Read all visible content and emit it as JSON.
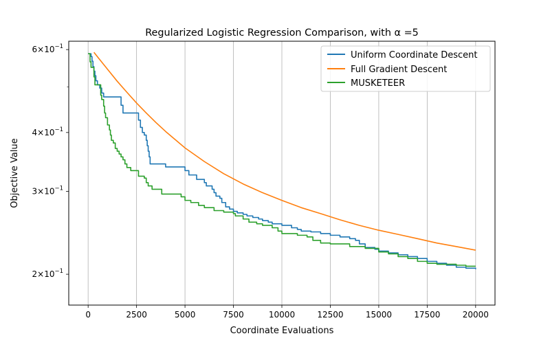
{
  "chart_data": {
    "type": "line",
    "title": "Regularized Logistic Regression Comparison, with α =5",
    "xlabel": "Coordinate Evaluations",
    "ylabel": "Objective Value",
    "xlim": [
      -1000,
      21000
    ],
    "ylim": [
      0.172,
      0.625
    ],
    "yscale": "log",
    "grid": "x-major-vertical",
    "legend_position": "top-right",
    "x_ticks": [
      0,
      2500,
      5000,
      7500,
      10000,
      12500,
      15000,
      17500,
      20000
    ],
    "x_tick_labels": [
      "0",
      "2500",
      "5000",
      "7500",
      "10000",
      "12500",
      "15000",
      "17500",
      "20000"
    ],
    "y_ticks": [
      0.6,
      0.4,
      0.3,
      0.2
    ],
    "y_tick_labels": [
      {
        "base": "6×10",
        "exp": "−1"
      },
      {
        "base": "4×10",
        "exp": "−1"
      },
      {
        "base": "3×10",
        "exp": "−1"
      },
      {
        "base": "2×10",
        "exp": "−1"
      }
    ],
    "y_minor_ticks": [
      0.5
    ],
    "series": [
      {
        "name": "Uniform Coordinate Descent",
        "color": "#1f77b4",
        "step": true,
        "points": [
          [
            0,
            0.588
          ],
          [
            80,
            0.588
          ],
          [
            150,
            0.58
          ],
          [
            200,
            0.567
          ],
          [
            250,
            0.552
          ],
          [
            300,
            0.54
          ],
          [
            350,
            0.528
          ],
          [
            400,
            0.515
          ],
          [
            480,
            0.505
          ],
          [
            600,
            0.497
          ],
          [
            700,
            0.485
          ],
          [
            800,
            0.476
          ],
          [
            900,
            0.476
          ],
          [
            1700,
            0.476
          ],
          [
            1700,
            0.457
          ],
          [
            1800,
            0.44
          ],
          [
            2600,
            0.44
          ],
          [
            2600,
            0.425
          ],
          [
            2700,
            0.41
          ],
          [
            2800,
            0.4
          ],
          [
            2900,
            0.395
          ],
          [
            3000,
            0.385
          ],
          [
            3050,
            0.375
          ],
          [
            3100,
            0.365
          ],
          [
            3150,
            0.355
          ],
          [
            3200,
            0.343
          ],
          [
            4000,
            0.343
          ],
          [
            4000,
            0.338
          ],
          [
            5000,
            0.338
          ],
          [
            5000,
            0.332
          ],
          [
            5200,
            0.325
          ],
          [
            5600,
            0.325
          ],
          [
            5600,
            0.318
          ],
          [
            6000,
            0.313
          ],
          [
            6100,
            0.308
          ],
          [
            6400,
            0.303
          ],
          [
            6500,
            0.298
          ],
          [
            6600,
            0.293
          ],
          [
            6800,
            0.29
          ],
          [
            6900,
            0.284
          ],
          [
            7100,
            0.278
          ],
          [
            7300,
            0.275
          ],
          [
            7500,
            0.272
          ],
          [
            7700,
            0.27
          ],
          [
            8000,
            0.268
          ],
          [
            8200,
            0.266
          ],
          [
            8500,
            0.264
          ],
          [
            8800,
            0.262
          ],
          [
            9000,
            0.26
          ],
          [
            9300,
            0.258
          ],
          [
            9500,
            0.256
          ],
          [
            10000,
            0.254
          ],
          [
            10500,
            0.251
          ],
          [
            10800,
            0.249
          ],
          [
            11000,
            0.247
          ],
          [
            11500,
            0.246
          ],
          [
            12000,
            0.244
          ],
          [
            12500,
            0.242
          ],
          [
            13000,
            0.24
          ],
          [
            13500,
            0.238
          ],
          [
            13800,
            0.236
          ],
          [
            14000,
            0.232
          ],
          [
            14300,
            0.228
          ],
          [
            14800,
            0.226
          ],
          [
            15000,
            0.224
          ],
          [
            15500,
            0.222
          ],
          [
            16000,
            0.22
          ],
          [
            16500,
            0.218
          ],
          [
            17000,
            0.216
          ],
          [
            17500,
            0.213
          ],
          [
            18000,
            0.211
          ],
          [
            18500,
            0.209
          ],
          [
            19000,
            0.207
          ],
          [
            19500,
            0.206
          ],
          [
            20000,
            0.205
          ]
        ]
      },
      {
        "name": "Full Gradient Descent",
        "color": "#ff7f0e",
        "step": false,
        "points": [
          [
            300,
            0.592
          ],
          [
            500,
            0.578
          ],
          [
            1000,
            0.545
          ],
          [
            1500,
            0.514
          ],
          [
            2000,
            0.487
          ],
          [
            2500,
            0.462
          ],
          [
            3000,
            0.44
          ],
          [
            3500,
            0.42
          ],
          [
            4000,
            0.402
          ],
          [
            5000,
            0.371
          ],
          [
            6000,
            0.347
          ],
          [
            7000,
            0.327
          ],
          [
            8000,
            0.311
          ],
          [
            9000,
            0.298
          ],
          [
            10000,
            0.287
          ],
          [
            11000,
            0.277
          ],
          [
            12000,
            0.269
          ],
          [
            13000,
            0.261
          ],
          [
            14000,
            0.254
          ],
          [
            15000,
            0.248
          ],
          [
            16000,
            0.243
          ],
          [
            17000,
            0.238
          ],
          [
            18000,
            0.233
          ],
          [
            19000,
            0.229
          ],
          [
            20000,
            0.225
          ]
        ]
      },
      {
        "name": "MUSKETEER",
        "color": "#2ca02c",
        "step": true,
        "points": [
          [
            0,
            0.588
          ],
          [
            100,
            0.588
          ],
          [
            100,
            0.565
          ],
          [
            150,
            0.565
          ],
          [
            150,
            0.55
          ],
          [
            300,
            0.55
          ],
          [
            300,
            0.525
          ],
          [
            350,
            0.525
          ],
          [
            350,
            0.505
          ],
          [
            650,
            0.505
          ],
          [
            650,
            0.48
          ],
          [
            700,
            0.47
          ],
          [
            800,
            0.455
          ],
          [
            850,
            0.44
          ],
          [
            900,
            0.43
          ],
          [
            1000,
            0.415
          ],
          [
            1100,
            0.405
          ],
          [
            1150,
            0.395
          ],
          [
            1200,
            0.385
          ],
          [
            1300,
            0.38
          ],
          [
            1400,
            0.37
          ],
          [
            1500,
            0.365
          ],
          [
            1600,
            0.36
          ],
          [
            1700,
            0.355
          ],
          [
            1800,
            0.35
          ],
          [
            1900,
            0.343
          ],
          [
            2000,
            0.337
          ],
          [
            2200,
            0.332
          ],
          [
            2600,
            0.33
          ],
          [
            2600,
            0.323
          ],
          [
            2900,
            0.32
          ],
          [
            3000,
            0.313
          ],
          [
            3100,
            0.308
          ],
          [
            3300,
            0.303
          ],
          [
            3800,
            0.3
          ],
          [
            3800,
            0.296
          ],
          [
            4800,
            0.296
          ],
          [
            4800,
            0.292
          ],
          [
            5000,
            0.287
          ],
          [
            5300,
            0.284
          ],
          [
            5700,
            0.28
          ],
          [
            6000,
            0.277
          ],
          [
            6500,
            0.273
          ],
          [
            7000,
            0.271
          ],
          [
            7500,
            0.269
          ],
          [
            7600,
            0.266
          ],
          [
            8000,
            0.262
          ],
          [
            8300,
            0.258
          ],
          [
            8700,
            0.256
          ],
          [
            9000,
            0.254
          ],
          [
            9500,
            0.251
          ],
          [
            9800,
            0.247
          ],
          [
            10000,
            0.244
          ],
          [
            10800,
            0.242
          ],
          [
            11300,
            0.24
          ],
          [
            11600,
            0.236
          ],
          [
            12000,
            0.233
          ],
          [
            12500,
            0.232
          ],
          [
            13500,
            0.229
          ],
          [
            14300,
            0.227
          ],
          [
            15000,
            0.223
          ],
          [
            15500,
            0.221
          ],
          [
            16000,
            0.218
          ],
          [
            16500,
            0.216
          ],
          [
            17000,
            0.213
          ],
          [
            17500,
            0.211
          ],
          [
            18000,
            0.21
          ],
          [
            19000,
            0.209
          ],
          [
            19500,
            0.208
          ],
          [
            20000,
            0.208
          ]
        ]
      }
    ]
  }
}
